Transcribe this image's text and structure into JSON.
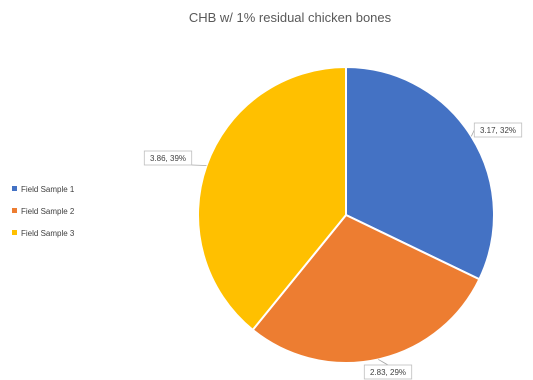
{
  "chart_data": {
    "type": "pie",
    "title": "CHB w/ 1% residual chicken bones",
    "legend_position": "left",
    "slices": [
      {
        "name": "Field Sample 1",
        "value": 3.17,
        "percent": 32,
        "label": "3.17, 32%",
        "color": "#4472C4"
      },
      {
        "name": "Field Sample 2",
        "value": 2.83,
        "percent": 29,
        "label": "2.83, 29%",
        "color": "#ED7D31"
      },
      {
        "name": "Field Sample 3",
        "value": 3.86,
        "percent": 39,
        "label": "3.86, 39%",
        "color": "#FFC000"
      }
    ]
  }
}
